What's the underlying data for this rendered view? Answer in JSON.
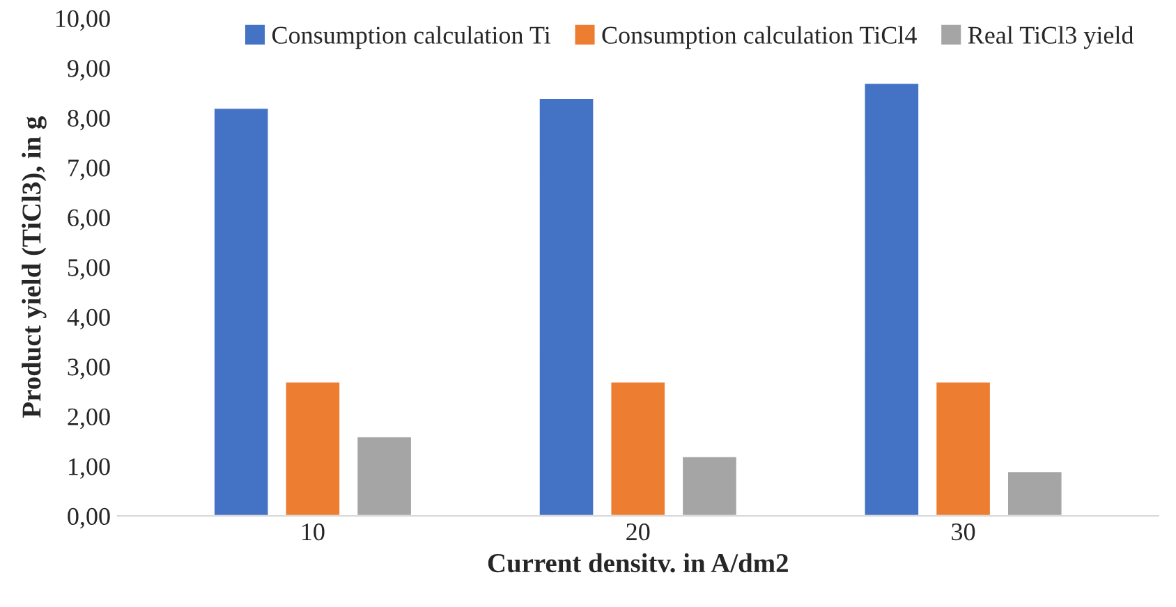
{
  "chart_data": {
    "type": "bar",
    "xlabel": "Current densitv. in A/dm2",
    "ylabel": "Product yield (TiCl3), in g",
    "categories": [
      "10",
      "20",
      "30"
    ],
    "series": [
      {
        "name": "Consumption calculation Ti",
        "color": "#4472c4",
        "values": [
          8.2,
          8.4,
          8.7
        ]
      },
      {
        "name": "Consumption calculation TiCl4",
        "color": "#ed7d31",
        "values": [
          2.7,
          2.7,
          2.7
        ]
      },
      {
        "name": "Real TiCl3 yield",
        "color": "#a5a5a5",
        "values": [
          1.6,
          1.2,
          0.9
        ]
      }
    ],
    "ylim": [
      0,
      10
    ],
    "yticks": [
      {
        "value": 0,
        "label": "0,00"
      },
      {
        "value": 1,
        "label": "1,00"
      },
      {
        "value": 2,
        "label": "2,00"
      },
      {
        "value": 3,
        "label": "3,00"
      },
      {
        "value": 4,
        "label": "4,00"
      },
      {
        "value": 5,
        "label": "5,00"
      },
      {
        "value": 6,
        "label": "6,00"
      },
      {
        "value": 7,
        "label": "7,00"
      },
      {
        "value": 8,
        "label": "8,00"
      },
      {
        "value": 9,
        "label": "9,00"
      },
      {
        "value": 10,
        "label": "10,00"
      }
    ],
    "grid": false,
    "legend": "top"
  }
}
